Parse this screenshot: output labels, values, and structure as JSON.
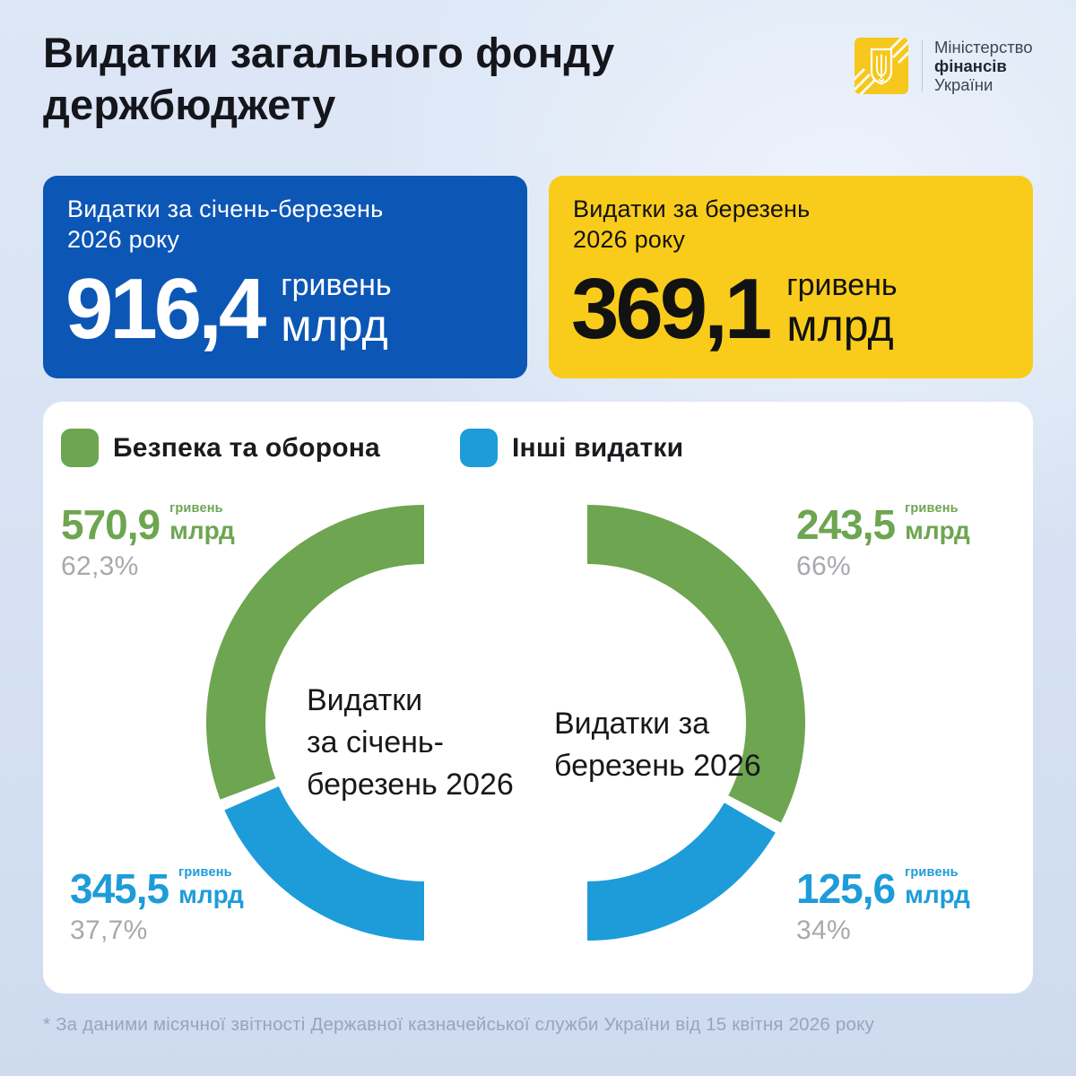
{
  "header": {
    "title_line1": "Видатки загального фонду",
    "title_line2": "держбюджету"
  },
  "logo": {
    "line1": "Міністерство",
    "line2": "фінансів",
    "line3": "України",
    "emblem_color": "#F6C71C"
  },
  "cards": {
    "quarter": {
      "label_line1": "Видатки за січень-березень",
      "label_line2": "2026 року",
      "value": "916,4",
      "unit_top": "гривень",
      "unit_bottom": "млрд",
      "bg": "#0C56B5",
      "fg": "#FFFFFF"
    },
    "month": {
      "label_line1": "Видатки за березень",
      "label_line2": "2026 року",
      "value": "369,1",
      "unit_top": "гривень",
      "unit_bottom": "млрд",
      "bg": "#F9CC1B",
      "fg": "#121212"
    }
  },
  "legend": {
    "items": [
      {
        "label": "Безпека та оборона",
        "color": "#6EA550"
      },
      {
        "label": "Інші видатки",
        "color": "#1E9CD9"
      }
    ]
  },
  "chart_data": [
    {
      "type": "donut",
      "shape": "half-ring-open-right",
      "title": "Видатки за січень-березень 2026",
      "center_label_lines": [
        "Видатки",
        "за січень-",
        "березень 2026"
      ],
      "total_bln_uah": 916.4,
      "slices": [
        {
          "name": "Безпека та оборона",
          "value_bln_uah": 570.9,
          "pct": 62.3,
          "value_label": "570,9",
          "unit_top": "гривень",
          "unit_bottom": "млрд",
          "pct_label": "62,3%",
          "color": "#6EA550"
        },
        {
          "name": "Інші видатки",
          "value_bln_uah": 345.5,
          "pct": 37.7,
          "value_label": "345,5",
          "unit_top": "гривень",
          "unit_bottom": "млрд",
          "pct_label": "37,7%",
          "color": "#1E9CD9"
        }
      ]
    },
    {
      "type": "donut",
      "shape": "half-ring-open-left",
      "title": "Видатки за березень 2026",
      "center_label_lines": [
        "Видатки за",
        "березень 2026"
      ],
      "total_bln_uah": 369.1,
      "slices": [
        {
          "name": "Безпека та оборона",
          "value_bln_uah": 243.5,
          "pct": 66,
          "value_label": "243,5",
          "unit_top": "гривень",
          "unit_bottom": "млрд",
          "pct_label": "66%",
          "color": "#6EA550"
        },
        {
          "name": "Інші видатки",
          "value_bln_uah": 125.6,
          "pct": 34,
          "value_label": "125,6",
          "unit_top": "гривень",
          "unit_bottom": "млрд",
          "pct_label": "34%",
          "color": "#1E9CD9"
        }
      ]
    }
  ],
  "footnote": "* За даними місячної звітності Державної казначейської служби України від 15 квітня 2026 року"
}
